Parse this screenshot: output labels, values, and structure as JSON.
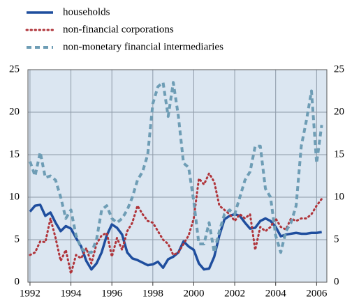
{
  "chart_data": {
    "type": "line",
    "x": [
      1992,
      1992.25,
      1992.5,
      1992.75,
      1993,
      1993.25,
      1993.5,
      1993.75,
      1994,
      1994.25,
      1994.5,
      1994.75,
      1995,
      1995.25,
      1995.5,
      1995.75,
      1996,
      1996.25,
      1996.5,
      1996.75,
      1997,
      1997.25,
      1997.5,
      1997.75,
      1998,
      1998.25,
      1998.5,
      1998.75,
      1999,
      1999.25,
      1999.5,
      1999.75,
      2000,
      2000.25,
      2000.5,
      2000.75,
      2001,
      2001.25,
      2001.5,
      2001.75,
      2002,
      2002.25,
      2002.5,
      2002.75,
      2003,
      2003.25,
      2003.5,
      2003.75,
      2004,
      2004.25,
      2004.5,
      2004.75,
      2005,
      2005.25,
      2005.5,
      2005.75,
      2006,
      2006.25
    ],
    "series": [
      {
        "name": "households",
        "color": "#1f4e9e",
        "style": "solid",
        "values": [
          8.3,
          9.0,
          9.1,
          7.8,
          8.2,
          7.0,
          6.0,
          6.6,
          6.3,
          5.2,
          4.2,
          2.5,
          1.5,
          2.2,
          3.5,
          5.5,
          6.8,
          6.4,
          5.6,
          3.5,
          2.8,
          2.6,
          2.3,
          2.0,
          2.1,
          2.4,
          1.7,
          2.7,
          3.0,
          3.5,
          4.8,
          4.2,
          3.8,
          2.2,
          1.5,
          1.6,
          3.0,
          5.5,
          7.4,
          7.8,
          8.0,
          7.8,
          7.0,
          6.3,
          6.4,
          7.2,
          7.5,
          7.2,
          6.5,
          5.4,
          5.6,
          5.7,
          5.8,
          5.7,
          5.7,
          5.8,
          5.8,
          5.9
        ]
      },
      {
        "name": "non-financial corporations",
        "color": "#b0343a",
        "style": "dotted",
        "values": [
          3.2,
          3.5,
          4.8,
          4.7,
          7.5,
          5.2,
          2.5,
          3.8,
          1.0,
          3.2,
          2.8,
          4.0,
          2.2,
          4.5,
          5.5,
          5.8,
          3.0,
          5.2,
          3.8,
          6.0,
          7.0,
          9.0,
          8.0,
          7.2,
          7.0,
          6.0,
          5.0,
          4.5,
          3.2,
          3.5,
          4.5,
          5.5,
          7.5,
          12.2,
          11.5,
          12.8,
          11.8,
          9.0,
          8.5,
          8.0,
          7.2,
          8.0,
          7.5,
          8.0,
          3.8,
          6.5,
          6.0,
          6.5,
          7.5,
          6.5,
          6.2,
          7.5,
          7.2,
          7.5,
          7.5,
          8.0,
          9.0,
          9.8
        ]
      },
      {
        "name": "non-monetary financial intermediaries",
        "color": "#6e9db5",
        "style": "dashed",
        "values": [
          14.2,
          12.5,
          15.3,
          12.3,
          12.5,
          12.0,
          10.0,
          7.5,
          8.5,
          5.5,
          4.0,
          3.5,
          3.5,
          5.0,
          8.5,
          9.0,
          7.5,
          7.0,
          7.5,
          8.5,
          10.0,
          12.0,
          13.0,
          15.0,
          21.0,
          23.0,
          23.5,
          19.5,
          23.5,
          19.5,
          14.0,
          13.5,
          9.5,
          4.5,
          4.5,
          7.0,
          3.5,
          6.0,
          8.0,
          8.5,
          8.0,
          10.0,
          12.0,
          13.0,
          16.0,
          16.0,
          11.0,
          10.0,
          5.5,
          3.5,
          6.0,
          7.0,
          9.0,
          16.0,
          19.0,
          22.5,
          14.0,
          18.5
        ]
      }
    ],
    "xlim": [
      1991.9,
      2006.5
    ],
    "xticks": [
      1992,
      1994,
      1996,
      1998,
      2000,
      2002,
      2004,
      2006
    ],
    "ylim": [
      0,
      25
    ],
    "yticks": [
      0,
      5,
      10,
      15,
      20,
      25
    ],
    "grid": true
  }
}
